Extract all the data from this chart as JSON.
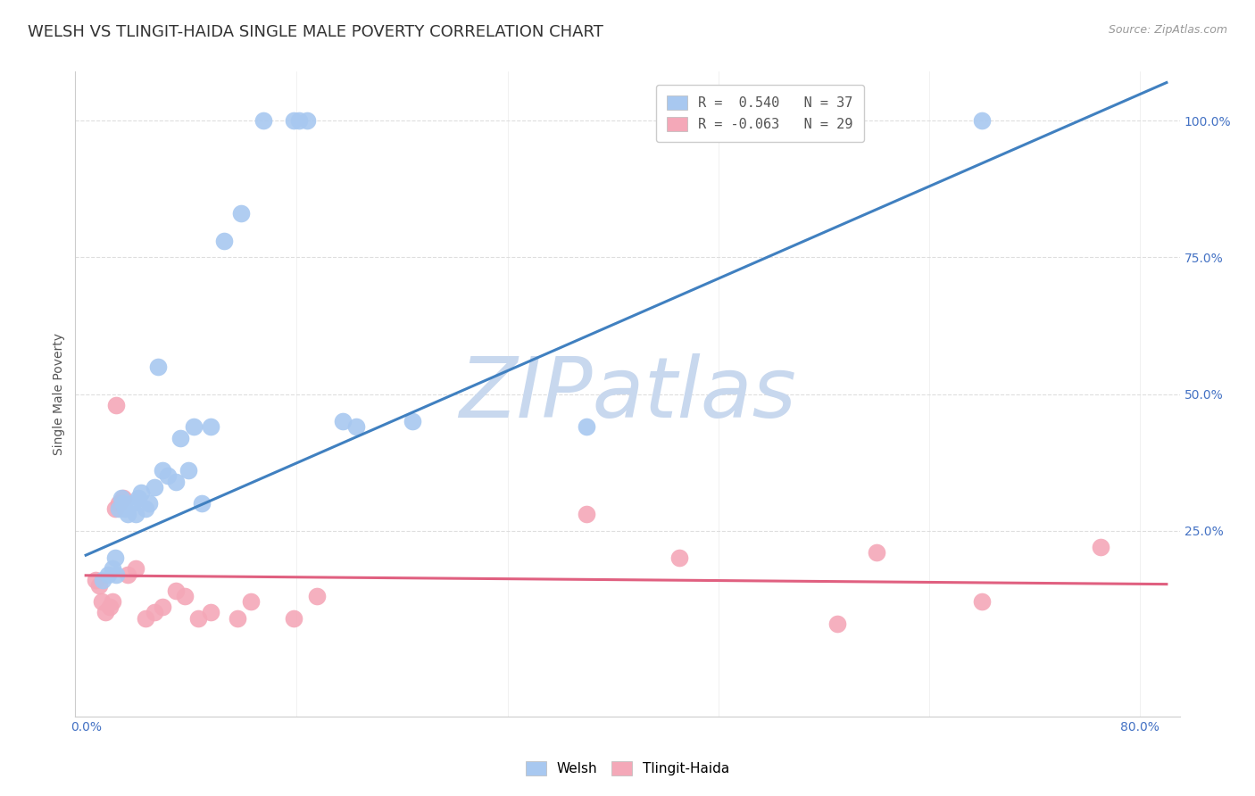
{
  "title": "WELSH VS TLINGIT-HAIDA SINGLE MALE POVERTY CORRELATION CHART",
  "source": "Source: ZipAtlas.com",
  "ylabel": "Single Male Poverty",
  "ytick_labels": [
    "100.0%",
    "75.0%",
    "50.0%",
    "25.0%"
  ],
  "ytick_values": [
    1.0,
    0.75,
    0.5,
    0.25
  ],
  "xlim": [
    -0.008,
    0.83
  ],
  "ylim": [
    -0.09,
    1.09
  ],
  "welsh_R": 0.54,
  "welsh_N": 37,
  "tlingit_R": -0.063,
  "tlingit_N": 29,
  "welsh_color": "#A8C8F0",
  "tlingit_color": "#F4A8B8",
  "welsh_line_color": "#4080C0",
  "tlingit_line_color": "#E06080",
  "background_color": "#FFFFFF",
  "watermark_text": "ZIPatlas",
  "watermark_color": "#C8D8EE",
  "welsh_line_x0": 0.0,
  "welsh_line_y0": 0.205,
  "welsh_line_x1": 0.82,
  "welsh_line_y1": 1.07,
  "tlingit_line_x0": 0.0,
  "tlingit_line_y0": 0.168,
  "tlingit_line_x1": 0.82,
  "tlingit_line_y1": 0.152,
  "welsh_x": [
    0.013,
    0.017,
    0.02,
    0.022,
    0.023,
    0.025,
    0.027,
    0.028,
    0.03,
    0.032,
    0.035,
    0.038,
    0.04,
    0.042,
    0.045,
    0.048,
    0.052,
    0.055,
    0.058,
    0.062,
    0.068,
    0.072,
    0.078,
    0.082,
    0.088,
    0.095,
    0.105,
    0.118,
    0.135,
    0.158,
    0.162,
    0.168,
    0.195,
    0.205,
    0.248,
    0.68,
    0.38
  ],
  "welsh_y": [
    0.16,
    0.17,
    0.18,
    0.2,
    0.17,
    0.29,
    0.31,
    0.3,
    0.29,
    0.28,
    0.3,
    0.28,
    0.31,
    0.32,
    0.29,
    0.3,
    0.33,
    0.55,
    0.36,
    0.35,
    0.34,
    0.42,
    0.36,
    0.44,
    0.3,
    0.44,
    0.78,
    0.83,
    1.0,
    1.0,
    1.0,
    1.0,
    0.45,
    0.44,
    0.45,
    1.0,
    0.44
  ],
  "tlingit_x": [
    0.007,
    0.01,
    0.012,
    0.015,
    0.018,
    0.02,
    0.022,
    0.025,
    0.028,
    0.032,
    0.038,
    0.045,
    0.052,
    0.058,
    0.068,
    0.075,
    0.085,
    0.095,
    0.115,
    0.125,
    0.158,
    0.175,
    0.38,
    0.45,
    0.57,
    0.6,
    0.68,
    0.77,
    0.023
  ],
  "tlingit_y": [
    0.16,
    0.15,
    0.12,
    0.1,
    0.11,
    0.12,
    0.29,
    0.3,
    0.31,
    0.17,
    0.18,
    0.09,
    0.1,
    0.11,
    0.14,
    0.13,
    0.09,
    0.1,
    0.09,
    0.12,
    0.09,
    0.13,
    0.28,
    0.2,
    0.08,
    0.21,
    0.12,
    0.22,
    0.48
  ],
  "grid_color": "#DEDEDE",
  "title_fontsize": 13,
  "axis_label_fontsize": 10,
  "tick_fontsize": 10,
  "legend_fontsize": 11
}
